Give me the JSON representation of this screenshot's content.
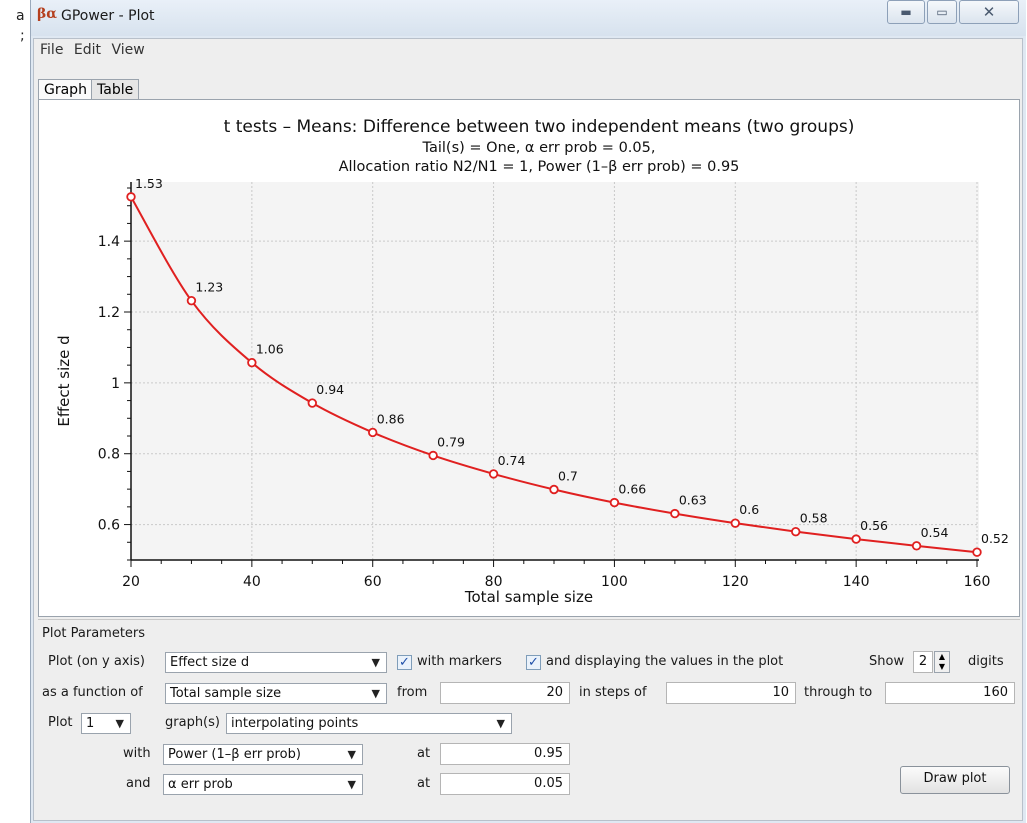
{
  "window": {
    "title": "GPower - Plot",
    "app_icon_text": "βα"
  },
  "background_chars": [
    "a",
    ";"
  ],
  "menu": [
    "File",
    "Edit",
    "View"
  ],
  "tabs": [
    "Graph",
    "Table"
  ],
  "chart_data": {
    "type": "line",
    "title": "t tests – Means: Difference between two independent means (two groups)",
    "subtitle1": "Tail(s) = One, α err prob = 0.05,",
    "subtitle2": "Allocation ratio N2/N1 = 1, Power (1–β err prob) = 0.95",
    "xlabel": "Total sample size",
    "ylabel": "Effect size d",
    "x": [
      20,
      30,
      40,
      50,
      60,
      70,
      80,
      90,
      100,
      110,
      120,
      130,
      140,
      150,
      160
    ],
    "y": [
      1.525,
      1.232,
      1.057,
      0.943,
      0.86,
      0.795,
      0.743,
      0.699,
      0.662,
      0.631,
      0.604,
      0.58,
      0.559,
      0.54,
      0.522
    ],
    "point_labels": [
      "1.53",
      "1.23",
      "1.06",
      "0.94",
      "0.86",
      "0.79",
      "0.74",
      "0.7",
      "0.66",
      "0.63",
      "0.6",
      "0.58",
      "0.56",
      "0.54",
      "0.52"
    ],
    "xticks": [
      "20",
      "40",
      "60",
      "80",
      "100",
      "120",
      "140",
      "160"
    ],
    "yticks": [
      "0.6",
      "0.8",
      "1",
      "1.2",
      "1.4"
    ],
    "xlim": [
      20,
      160
    ],
    "ylim": [
      0.5,
      1.55
    ],
    "grid": true,
    "line_color": "#e02020"
  },
  "params": {
    "section_title": "Plot Parameters",
    "row1": {
      "label": "Plot (on y axis)",
      "y_axis": "Effect size d",
      "with_markers_label": "with markers",
      "with_markers_checked": true,
      "display_values_label": "and displaying the values in the plot",
      "display_values_checked": true,
      "show_label": "Show",
      "digits_value": "2",
      "digits_label": "digits"
    },
    "row2": {
      "label": "as a function of",
      "x_axis": "Total sample size",
      "from_label": "from",
      "from_value": "20",
      "steps_label": "in steps of",
      "steps_value": "10",
      "through_label": "through to",
      "through_value": "160"
    },
    "row3": {
      "label": "Plot",
      "count": "1",
      "graphs_label": "graph(s)",
      "mode": "interpolating points"
    },
    "row4": {
      "label": "with",
      "param": "Power (1–β err prob)",
      "at_label": "at",
      "value": "0.95"
    },
    "row5": {
      "label": "and",
      "param": "α err prob",
      "at_label": "at",
      "value": "0.05"
    },
    "draw_button": "Draw plot"
  }
}
